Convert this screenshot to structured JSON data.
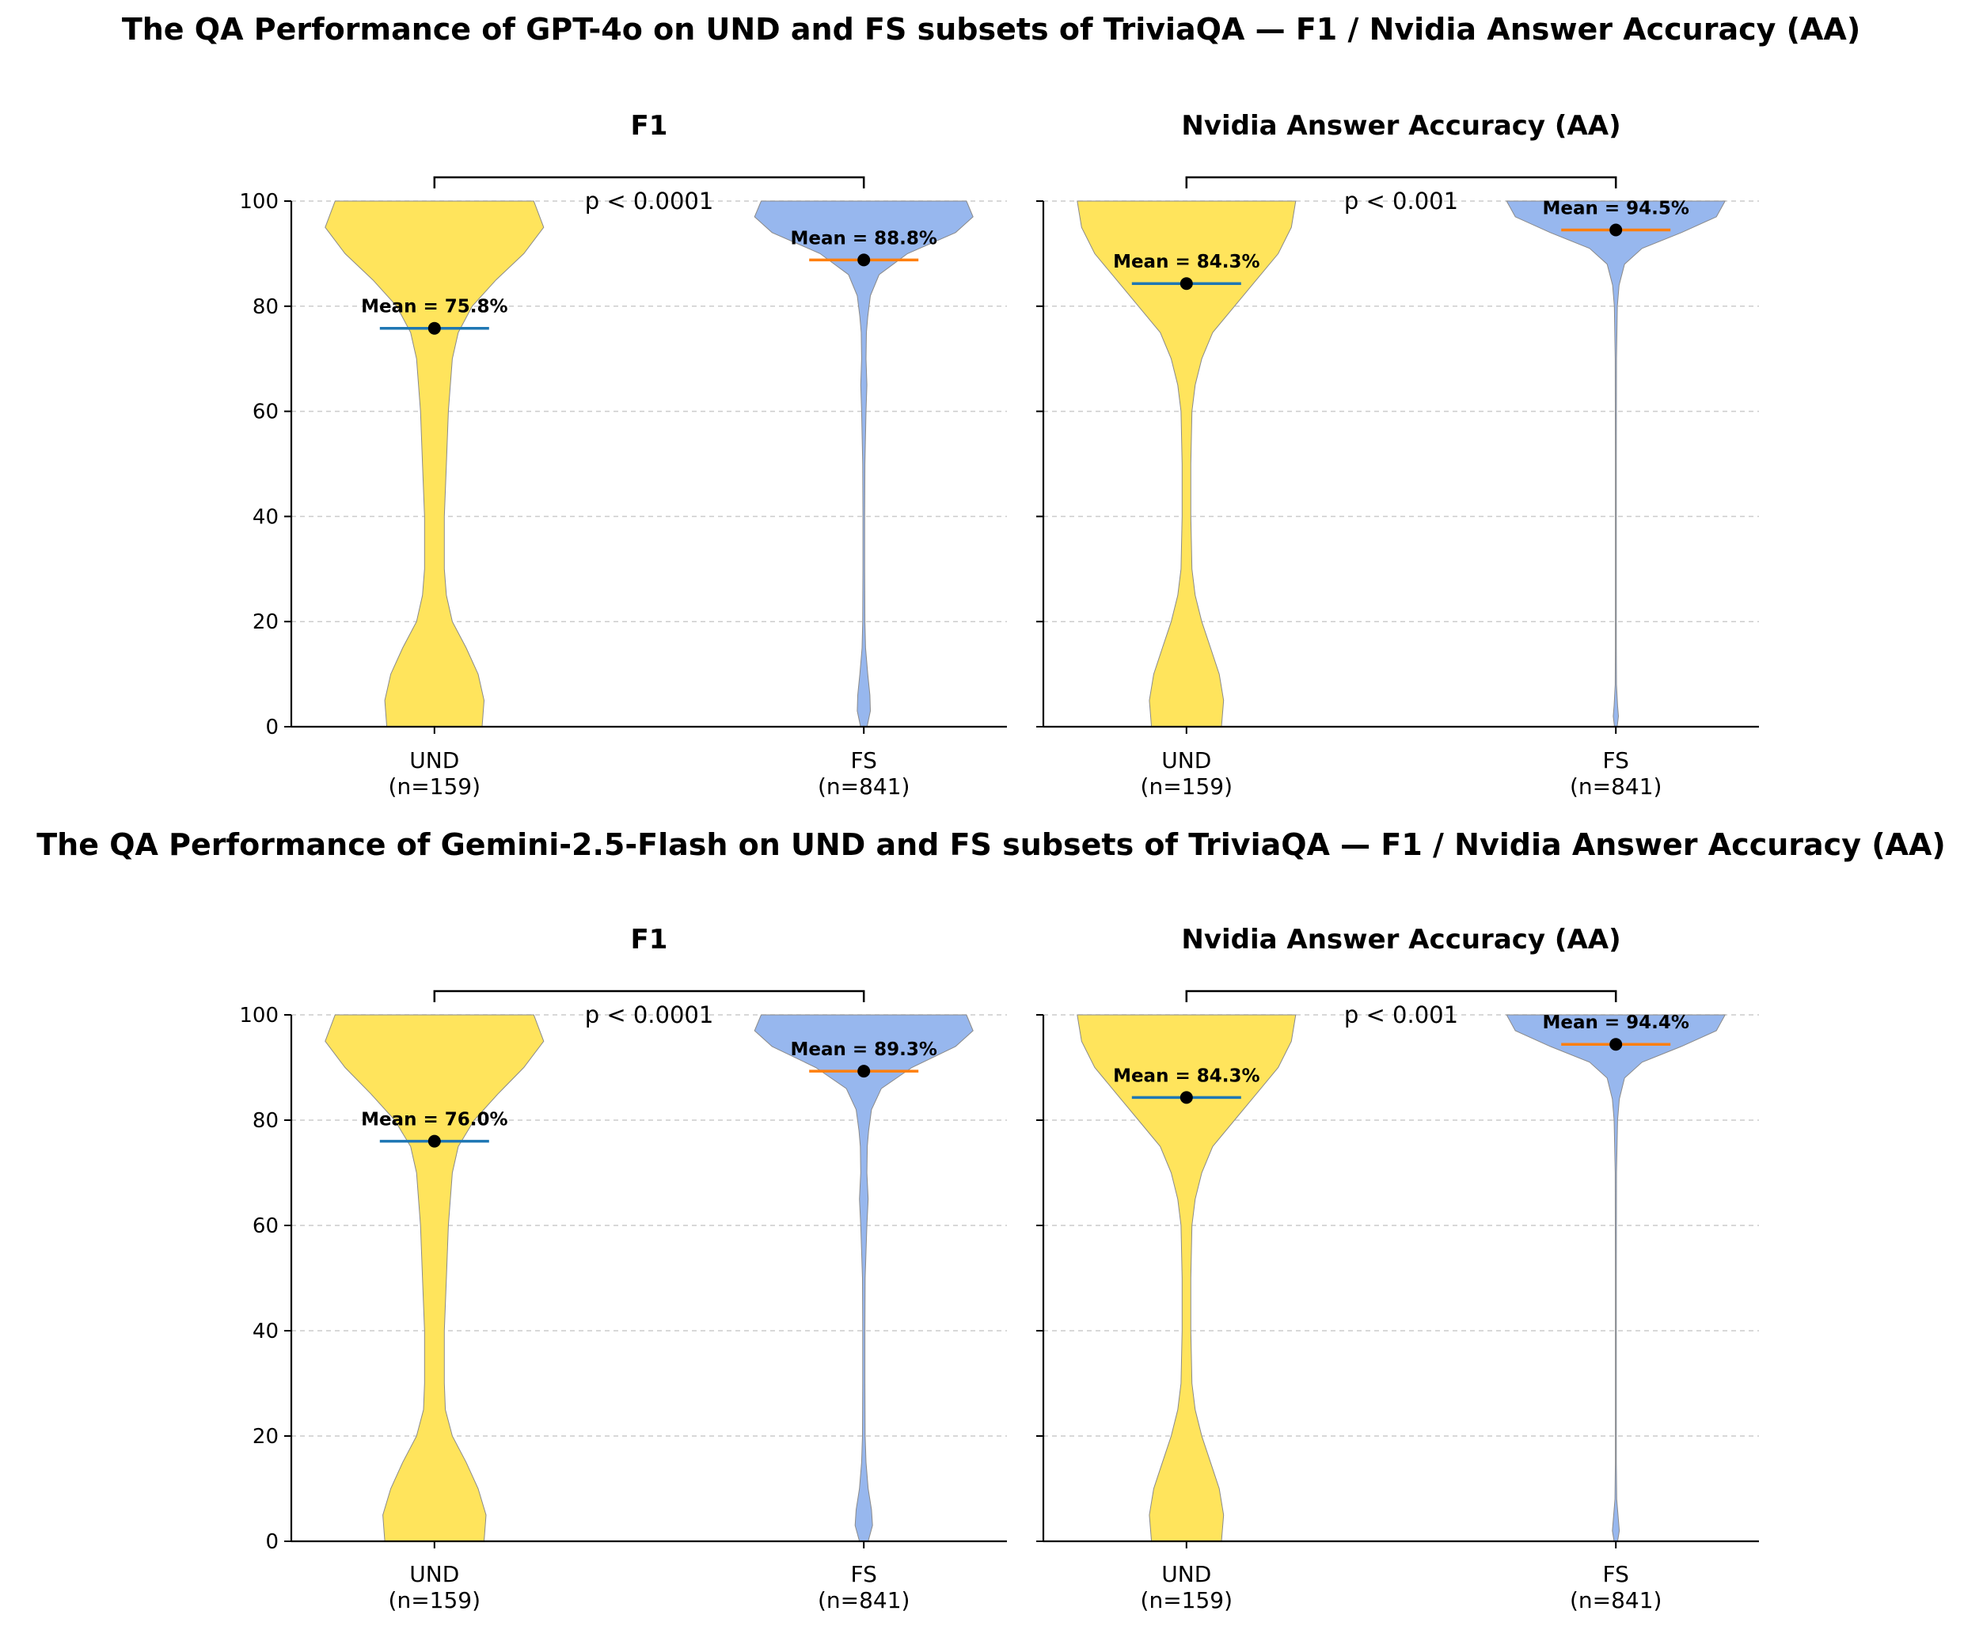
{
  "figure": {
    "titles": [
      "The QA Performance of GPT-4o on UND and FS subsets of TriviaQA — F1 / Nvidia Answer Accuracy (AA)",
      "The QA Performance of Gemini-2.5-Flash on UND and FS subsets of TriviaQA — F1 / Nvidia Answer Accuracy (AA)"
    ]
  },
  "colors": {
    "und_fill": "#FFE45C",
    "fs_fill": "#97B7EE",
    "und_mean_line": "#1f77b4",
    "fs_mean_line": "#ff7f0e",
    "grid": "#cccccc"
  },
  "chart_data": [
    {
      "type": "violin",
      "row": 0,
      "title": "F1",
      "ylim": [
        0,
        100
      ],
      "yticks": [
        "0",
        "20",
        "40",
        "60",
        "80",
        "100"
      ],
      "categories": [
        "UND",
        "FS"
      ],
      "counts": [
        "(n=159)",
        "(n=841)"
      ],
      "means": [
        75.8,
        88.8
      ],
      "mean_labels": [
        "Mean = 75.8%",
        "Mean = 88.8%"
      ],
      "p_value": "p < 0.0001",
      "density": {
        "UND": [
          [
            0,
            0.24
          ],
          [
            5,
            0.25
          ],
          [
            10,
            0.22
          ],
          [
            15,
            0.16
          ],
          [
            20,
            0.09
          ],
          [
            25,
            0.06
          ],
          [
            30,
            0.05
          ],
          [
            40,
            0.05
          ],
          [
            50,
            0.06
          ],
          [
            60,
            0.07
          ],
          [
            70,
            0.09
          ],
          [
            75,
            0.12
          ],
          [
            80,
            0.19
          ],
          [
            85,
            0.31
          ],
          [
            90,
            0.45
          ],
          [
            95,
            0.55
          ],
          [
            100,
            0.5
          ]
        ],
        "FS": [
          [
            0,
            0.015
          ],
          [
            3,
            0.03
          ],
          [
            6,
            0.028
          ],
          [
            10,
            0.018
          ],
          [
            15,
            0.008
          ],
          [
            20,
            0.005
          ],
          [
            30,
            0.004
          ],
          [
            40,
            0.004
          ],
          [
            50,
            0.005
          ],
          [
            60,
            0.01
          ],
          [
            65,
            0.014
          ],
          [
            70,
            0.01
          ],
          [
            75,
            0.012
          ],
          [
            78,
            0.018
          ],
          [
            82,
            0.03
          ],
          [
            86,
            0.07
          ],
          [
            90,
            0.2
          ],
          [
            94,
            0.42
          ],
          [
            97,
            0.5
          ],
          [
            100,
            0.47
          ]
        ]
      }
    },
    {
      "type": "violin",
      "row": 0,
      "title": "Nvidia Answer Accuracy (AA)",
      "ylim": [
        0,
        100
      ],
      "yticks": [
        "0",
        "20",
        "40",
        "60",
        "80",
        "100"
      ],
      "categories": [
        "UND",
        "FS"
      ],
      "counts": [
        "(n=159)",
        "(n=841)"
      ],
      "means": [
        84.3,
        94.5
      ],
      "mean_labels": [
        "Mean = 84.3%",
        "Mean = 94.5%"
      ],
      "p_value": "p < 0.001",
      "density": {
        "UND": [
          [
            0,
            0.16
          ],
          [
            5,
            0.17
          ],
          [
            10,
            0.15
          ],
          [
            15,
            0.11
          ],
          [
            20,
            0.07
          ],
          [
            25,
            0.04
          ],
          [
            30,
            0.025
          ],
          [
            40,
            0.02
          ],
          [
            50,
            0.02
          ],
          [
            60,
            0.025
          ],
          [
            65,
            0.04
          ],
          [
            70,
            0.07
          ],
          [
            75,
            0.12
          ],
          [
            80,
            0.22
          ],
          [
            85,
            0.32
          ],
          [
            90,
            0.42
          ],
          [
            95,
            0.48
          ],
          [
            100,
            0.5
          ]
        ],
        "FS": [
          [
            0,
            0.006
          ],
          [
            2,
            0.012
          ],
          [
            4,
            0.008
          ],
          [
            8,
            0.003
          ],
          [
            15,
            0.002
          ],
          [
            30,
            0.002
          ],
          [
            50,
            0.002
          ],
          [
            70,
            0.003
          ],
          [
            80,
            0.007
          ],
          [
            84,
            0.015
          ],
          [
            88,
            0.04
          ],
          [
            91,
            0.12
          ],
          [
            94,
            0.3
          ],
          [
            97,
            0.46
          ],
          [
            100,
            0.5
          ]
        ]
      }
    },
    {
      "type": "violin",
      "row": 1,
      "title": "F1",
      "ylim": [
        0,
        100
      ],
      "yticks": [
        "0",
        "20",
        "40",
        "60",
        "80",
        "100"
      ],
      "categories": [
        "UND",
        "FS"
      ],
      "counts": [
        "(n=159)",
        "(n=841)"
      ],
      "means": [
        76.0,
        89.3
      ],
      "mean_labels": [
        "Mean = 76.0%",
        "Mean = 89.3%"
      ],
      "p_value": "p < 0.0001",
      "density": {
        "UND": [
          [
            0,
            0.25
          ],
          [
            5,
            0.26
          ],
          [
            10,
            0.22
          ],
          [
            15,
            0.16
          ],
          [
            20,
            0.09
          ],
          [
            25,
            0.055
          ],
          [
            30,
            0.05
          ],
          [
            40,
            0.05
          ],
          [
            50,
            0.06
          ],
          [
            60,
            0.07
          ],
          [
            70,
            0.09
          ],
          [
            75,
            0.12
          ],
          [
            80,
            0.2
          ],
          [
            85,
            0.32
          ],
          [
            90,
            0.45
          ],
          [
            95,
            0.55
          ],
          [
            100,
            0.5
          ]
        ],
        "FS": [
          [
            0,
            0.02
          ],
          [
            3,
            0.04
          ],
          [
            6,
            0.035
          ],
          [
            10,
            0.02
          ],
          [
            15,
            0.01
          ],
          [
            20,
            0.006
          ],
          [
            30,
            0.005
          ],
          [
            40,
            0.005
          ],
          [
            50,
            0.006
          ],
          [
            60,
            0.014
          ],
          [
            65,
            0.02
          ],
          [
            70,
            0.014
          ],
          [
            75,
            0.016
          ],
          [
            78,
            0.022
          ],
          [
            82,
            0.035
          ],
          [
            86,
            0.08
          ],
          [
            90,
            0.22
          ],
          [
            94,
            0.42
          ],
          [
            97,
            0.5
          ],
          [
            100,
            0.47
          ]
        ]
      }
    },
    {
      "type": "violin",
      "row": 1,
      "title": "Nvidia Answer Accuracy (AA)",
      "ylim": [
        0,
        100
      ],
      "yticks": [
        "0",
        "20",
        "40",
        "60",
        "80",
        "100"
      ],
      "categories": [
        "UND",
        "FS"
      ],
      "counts": [
        "(n=159)",
        "(n=841)"
      ],
      "means": [
        84.3,
        94.4
      ],
      "mean_labels": [
        "Mean = 84.3%",
        "Mean = 94.4%"
      ],
      "p_value": "p < 0.001",
      "density": {
        "UND": [
          [
            0,
            0.16
          ],
          [
            5,
            0.17
          ],
          [
            10,
            0.15
          ],
          [
            15,
            0.11
          ],
          [
            20,
            0.07
          ],
          [
            25,
            0.04
          ],
          [
            30,
            0.025
          ],
          [
            40,
            0.02
          ],
          [
            50,
            0.02
          ],
          [
            60,
            0.025
          ],
          [
            65,
            0.04
          ],
          [
            70,
            0.07
          ],
          [
            75,
            0.12
          ],
          [
            80,
            0.22
          ],
          [
            85,
            0.32
          ],
          [
            90,
            0.42
          ],
          [
            95,
            0.48
          ],
          [
            100,
            0.5
          ]
        ],
        "FS": [
          [
            0,
            0.008
          ],
          [
            2,
            0.016
          ],
          [
            4,
            0.012
          ],
          [
            8,
            0.004
          ],
          [
            15,
            0.002
          ],
          [
            30,
            0.002
          ],
          [
            50,
            0.002
          ],
          [
            70,
            0.003
          ],
          [
            80,
            0.008
          ],
          [
            84,
            0.016
          ],
          [
            88,
            0.04
          ],
          [
            91,
            0.12
          ],
          [
            94,
            0.3
          ],
          [
            97,
            0.46
          ],
          [
            100,
            0.5
          ]
        ]
      }
    }
  ]
}
